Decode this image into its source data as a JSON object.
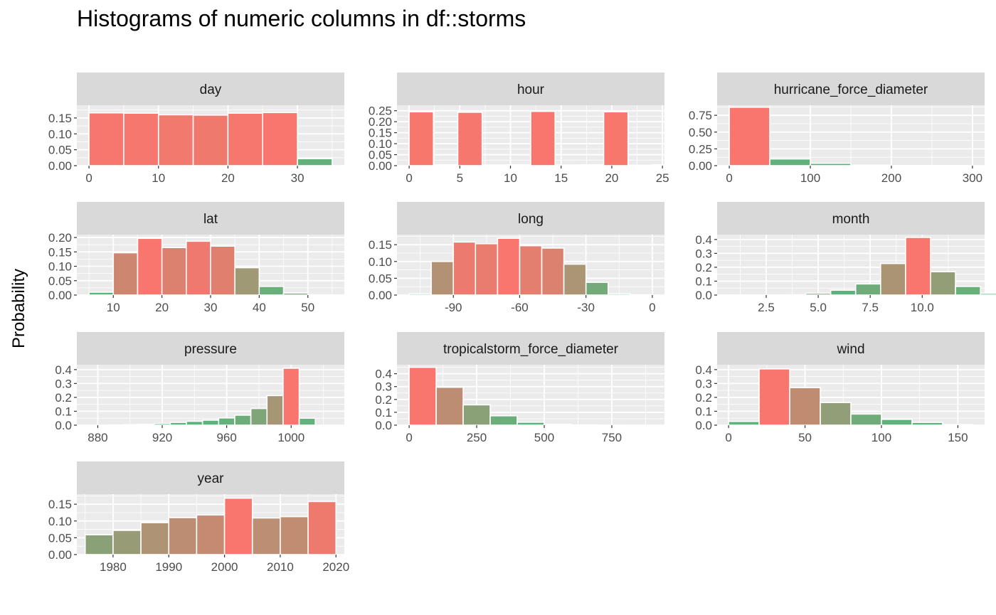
{
  "title": "Histograms of numeric columns in df::storms",
  "ylabel": "Probability",
  "colors": {
    "high": "#F8766D",
    "low": "#4EB97D",
    "panel_background": "#EBEBEB",
    "strip_background": "#D9D9D9",
    "gridline": "#FFFFFF",
    "tick_label": "#4D4D4D",
    "tick_mark": "#333333"
  },
  "chart_data": [
    {
      "type": "bar",
      "variable": "day",
      "title": "day",
      "bin_width": 5,
      "bin_start": 0,
      "values": [
        0.166,
        0.165,
        0.16,
        0.159,
        0.165,
        0.167,
        0.022
      ],
      "xlim": [
        -1.75,
        36.75
      ],
      "ylim": [
        0,
        0.19
      ],
      "xticks": [
        0,
        10,
        20,
        30
      ],
      "xtick_labels": [
        "0",
        "10",
        "20",
        "30"
      ],
      "yticks": [
        0,
        0.05,
        0.1,
        0.15
      ],
      "ytick_labels": [
        "0.00",
        "0.05",
        "0.10",
        "0.15"
      ]
    },
    {
      "type": "bar",
      "variable": "hour",
      "title": "hour",
      "bin_width": 2.4,
      "bin_start": 0,
      "values": [
        0.245,
        0.004,
        0.243,
        0.003,
        0.004,
        0.247,
        0.003,
        0.004,
        0.245,
        0.002,
        0.004,
        0.002
      ],
      "xlim": [
        -1.2,
        25.2
      ],
      "ylim": [
        0,
        0.275
      ],
      "xticks": [
        0,
        5,
        10,
        15,
        20,
        25
      ],
      "xtick_labels": [
        "0",
        "5",
        "10",
        "15",
        "20",
        "25"
      ],
      "yticks": [
        0,
        0.05,
        0.1,
        0.15,
        0.2,
        0.25
      ],
      "ytick_labels": [
        "0.00",
        "0.05",
        "0.10",
        "0.15",
        "0.20",
        "0.25"
      ]
    },
    {
      "type": "bar",
      "variable": "hurricane_force_diameter",
      "title": "hurricane_force_diameter",
      "bin_width": 50,
      "bin_start": 0,
      "values": [
        0.87,
        0.1,
        0.035,
        0.007,
        0.003,
        0.001
      ],
      "xlim": [
        -15,
        315
      ],
      "ylim": [
        0,
        0.9
      ],
      "xticks": [
        0,
        100,
        200,
        300
      ],
      "xtick_labels": [
        "0",
        "100",
        "200",
        "300"
      ],
      "yticks": [
        0,
        0.25,
        0.5,
        0.75
      ],
      "ytick_labels": [
        "0.00",
        "0.25",
        "0.50",
        "0.75"
      ]
    },
    {
      "type": "bar",
      "variable": "lat",
      "title": "lat",
      "bin_width": 5,
      "bin_start": 5,
      "values": [
        0.01,
        0.147,
        0.197,
        0.165,
        0.187,
        0.17,
        0.095,
        0.03,
        0.007,
        0.001
      ],
      "xlim": [
        2.5,
        57.5
      ],
      "ylim": [
        0,
        0.21
      ],
      "xticks": [
        10,
        20,
        30,
        40,
        50
      ],
      "xtick_labels": [
        "10",
        "20",
        "30",
        "40",
        "50"
      ],
      "yticks": [
        0,
        0.05,
        0.1,
        0.15,
        0.2
      ],
      "ytick_labels": [
        "0.00",
        "0.05",
        "0.10",
        "0.15",
        "0.20"
      ]
    },
    {
      "type": "bar",
      "variable": "long",
      "title": "long",
      "bin_width": 10,
      "bin_start": -110,
      "values": [
        0.004,
        0.1,
        0.158,
        0.153,
        0.169,
        0.147,
        0.14,
        0.092,
        0.038,
        0.004,
        0.001
      ],
      "xlim": [
        -115.5,
        5.5
      ],
      "ylim": [
        0,
        0.18
      ],
      "xticks": [
        -90,
        -60,
        -30,
        0
      ],
      "xtick_labels": [
        "-90",
        "-60",
        "-30",
        "0"
      ],
      "yticks": [
        0,
        0.05,
        0.1,
        0.15
      ],
      "ytick_labels": [
        "0.00",
        "0.05",
        "0.10",
        "0.15"
      ]
    },
    {
      "type": "bar",
      "variable": "month",
      "title": "month",
      "bin_width": 1.2,
      "bin_start": 0.8,
      "values": [
        0.001,
        0.001,
        0.002,
        0.013,
        0.035,
        0.08,
        0.227,
        0.415,
        0.168,
        0.062,
        0.012
      ],
      "xlim": [
        0.14,
        13.0
      ],
      "ylim": [
        0,
        0.435
      ],
      "xticks": [
        2.5,
        5,
        7.5,
        10
      ],
      "xtick_labels": [
        "2.5",
        "5.0",
        "7.5",
        "10.0"
      ],
      "yticks": [
        0,
        0.1,
        0.2,
        0.3,
        0.4
      ],
      "ytick_labels": [
        "0.0",
        "0.1",
        "0.2",
        "0.3",
        "0.4"
      ]
    },
    {
      "type": "bar",
      "variable": "pressure",
      "title": "pressure",
      "bin_width": 10,
      "bin_start": 875,
      "values": [
        0.0005,
        0.0015,
        0.003,
        0.006,
        0.012,
        0.02,
        0.028,
        0.036,
        0.052,
        0.072,
        0.12,
        0.213,
        0.41,
        0.05
      ],
      "xlim": [
        867,
        1033
      ],
      "ylim": [
        0,
        0.435
      ],
      "xticks": [
        880,
        920,
        960,
        1000
      ],
      "xtick_labels": [
        "880",
        "920",
        "960",
        "1000"
      ],
      "yticks": [
        0,
        0.1,
        0.2,
        0.3,
        0.4
      ],
      "ytick_labels": [
        "0.0",
        "0.1",
        "0.2",
        "0.3",
        "0.4"
      ]
    },
    {
      "type": "bar",
      "variable": "tropicalstorm_force_diameter",
      "title": "tropicalstorm_force_diameter",
      "bin_width": 100,
      "bin_start": 0,
      "values": [
        0.45,
        0.295,
        0.158,
        0.073,
        0.023,
        0.007,
        0.002,
        0.001,
        0.0005
      ],
      "xlim": [
        -45,
        945
      ],
      "ylim": [
        0,
        0.47
      ],
      "xticks": [
        0,
        250,
        500,
        750
      ],
      "xtick_labels": [
        "0",
        "250",
        "500",
        "750"
      ],
      "yticks": [
        0,
        0.1,
        0.2,
        0.3,
        0.4
      ],
      "ytick_labels": [
        "0.0",
        "0.1",
        "0.2",
        "0.3",
        "0.4"
      ]
    },
    {
      "type": "bar",
      "variable": "wind",
      "title": "wind",
      "bin_width": 20,
      "bin_start": 0,
      "values": [
        0.027,
        0.405,
        0.27,
        0.163,
        0.08,
        0.042,
        0.02,
        0.005
      ],
      "xlim": [
        -7.5,
        167.5
      ],
      "ylim": [
        0,
        0.435
      ],
      "xticks": [
        0,
        50,
        100,
        150
      ],
      "xtick_labels": [
        "0",
        "50",
        "100",
        "150"
      ],
      "yticks": [
        0,
        0.1,
        0.2,
        0.3,
        0.4
      ],
      "ytick_labels": [
        "0.0",
        "0.1",
        "0.2",
        "0.3",
        "0.4"
      ]
    },
    {
      "type": "bar",
      "variable": "year",
      "title": "year",
      "bin_width": 5,
      "bin_start": 1975,
      "values": [
        0.059,
        0.072,
        0.095,
        0.11,
        0.118,
        0.168,
        0.109,
        0.113,
        0.158
      ],
      "xlim": [
        1973.5,
        2021.5
      ],
      "ylim": [
        0,
        0.18
      ],
      "xticks": [
        1980,
        1990,
        2000,
        2010,
        2020
      ],
      "xtick_labels": [
        "1980",
        "1990",
        "2000",
        "2010",
        "2020"
      ],
      "yticks": [
        0,
        0.05,
        0.1,
        0.15
      ],
      "ytick_labels": [
        "0.00",
        "0.05",
        "0.10",
        "0.15"
      ]
    }
  ]
}
